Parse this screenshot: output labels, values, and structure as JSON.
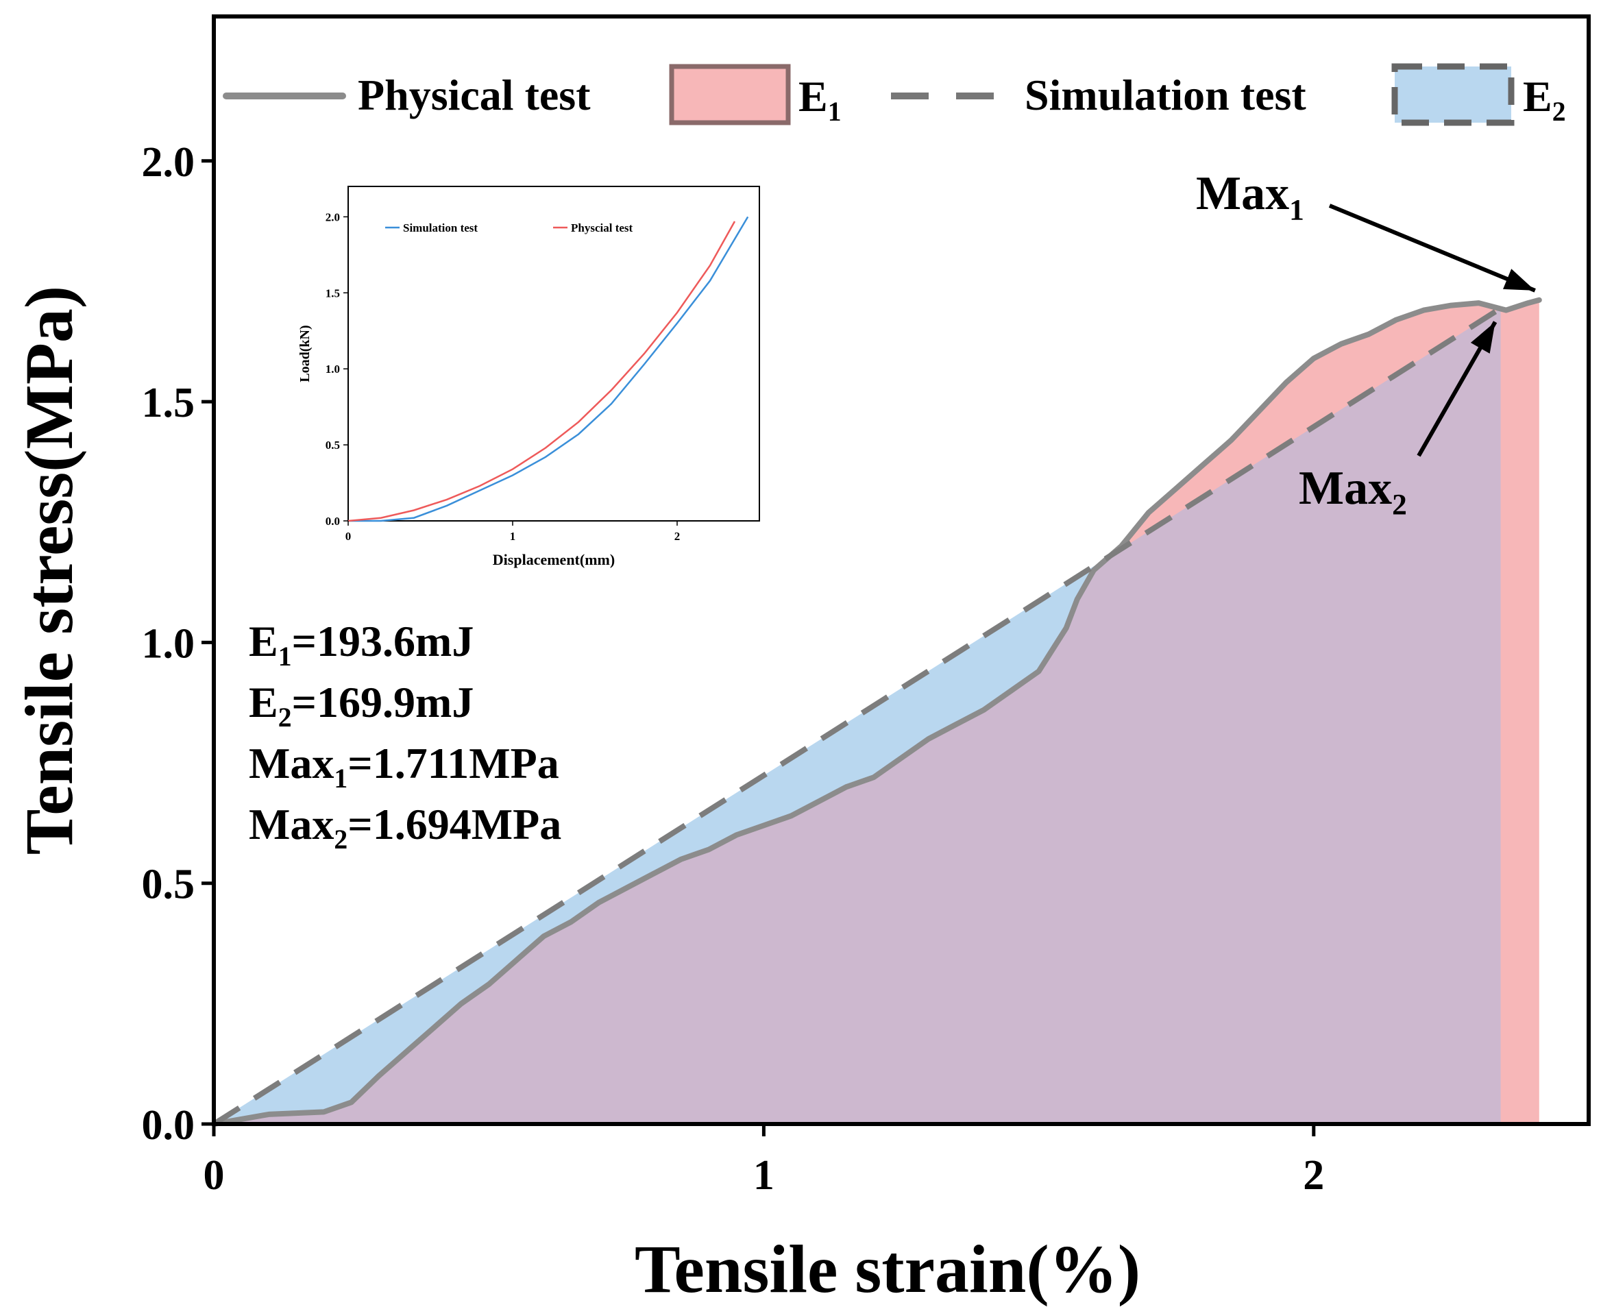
{
  "chart_data": {
    "type": "area",
    "xlabel": "Tensile strain(%)",
    "ylabel": "Tensile stress(MPa)",
    "xlim": [
      0,
      2.5
    ],
    "ylim": [
      0,
      2.3
    ],
    "x_ticks": [
      "0",
      "1",
      "2"
    ],
    "x_tick_values": [
      0,
      1,
      2
    ],
    "y_ticks": [
      "0.0",
      "0.5",
      "1.0",
      "1.5",
      "2.0"
    ],
    "y_tick_values": [
      0,
      0.5,
      1.0,
      1.5,
      2.0
    ],
    "legend": {
      "placement": "top",
      "physical_label": "Physical test",
      "e1_label": "E",
      "e1_sub": "1",
      "simulation_label": "Simulation test",
      "e2_label": "E",
      "e2_sub": "2"
    },
    "series": [
      {
        "name": "Physical test",
        "style": "solid",
        "x": [
          0,
          0.1,
          0.2,
          0.25,
          0.3,
          0.35,
          0.4,
          0.45,
          0.5,
          0.55,
          0.6,
          0.65,
          0.7,
          0.75,
          0.8,
          0.85,
          0.9,
          0.95,
          1.0,
          1.05,
          1.1,
          1.15,
          1.2,
          1.25,
          1.3,
          1.35,
          1.4,
          1.45,
          1.5,
          1.55,
          1.57,
          1.6,
          1.65,
          1.7,
          1.75,
          1.8,
          1.85,
          1.9,
          1.95,
          2.0,
          2.05,
          2.1,
          2.15,
          2.2,
          2.25,
          2.3,
          2.35,
          2.39,
          2.41
        ],
        "y": [
          0.0,
          0.02,
          0.025,
          0.045,
          0.1,
          0.15,
          0.2,
          0.25,
          0.29,
          0.34,
          0.39,
          0.42,
          0.46,
          0.49,
          0.52,
          0.55,
          0.57,
          0.6,
          0.62,
          0.64,
          0.67,
          0.7,
          0.72,
          0.76,
          0.8,
          0.83,
          0.86,
          0.9,
          0.94,
          1.03,
          1.09,
          1.15,
          1.2,
          1.27,
          1.32,
          1.37,
          1.42,
          1.48,
          1.54,
          1.59,
          1.62,
          1.64,
          1.67,
          1.69,
          1.7,
          1.705,
          1.69,
          1.705,
          1.711
        ]
      },
      {
        "name": "Simulation test",
        "style": "dashed",
        "x": [
          0,
          2.34
        ],
        "y": [
          0,
          1.694
        ]
      }
    ],
    "fills": [
      {
        "name": "E1",
        "color": "#f7b7b8",
        "under": "Physical test",
        "x_end": 2.41
      },
      {
        "name": "E2",
        "color": "#b9d7ef",
        "under": "Simulation test",
        "x_end": 2.34
      },
      {
        "name": "overlap",
        "color": "#cdb8cf"
      }
    ],
    "annotations": {
      "max1": {
        "label": "Max",
        "sub": "1",
        "x": 2.41,
        "y": 1.711
      },
      "max2": {
        "label": "Max",
        "sub": "2",
        "x": 2.34,
        "y": 1.694
      }
    },
    "stats": [
      {
        "label": "E",
        "sub": "1",
        "value": "=193.6mJ"
      },
      {
        "label": "E",
        "sub": "2",
        "value": "=169.9mJ"
      },
      {
        "label": "Max",
        "sub": "1",
        "value": "=1.711MPa"
      },
      {
        "label": "Max",
        "sub": "2",
        "value": "=1.694MPa"
      }
    ],
    "inset": {
      "type": "line",
      "xlabel": "Displacement(mm)",
      "ylabel": "Load(kN)",
      "xlim": [
        0,
        2.5
      ],
      "ylim": [
        0,
        2.2
      ],
      "x_ticks": [
        "0",
        "1",
        "2"
      ],
      "x_tick_values": [
        0,
        1,
        2
      ],
      "y_ticks": [
        "0.0",
        "0.5",
        "1.0",
        "1.5",
        "2.0"
      ],
      "y_tick_values": [
        0,
        0.5,
        1.0,
        1.5,
        2.0
      ],
      "series": [
        {
          "name": "Simulation test",
          "color": "#3a8fd9",
          "x": [
            0,
            0.2,
            0.4,
            0.6,
            0.8,
            1.0,
            1.2,
            1.4,
            1.6,
            1.8,
            2.0,
            2.2,
            2.43
          ],
          "y": [
            0,
            0.0,
            0.02,
            0.1,
            0.2,
            0.3,
            0.42,
            0.57,
            0.77,
            1.03,
            1.3,
            1.58,
            2.0
          ]
        },
        {
          "name": "Physcial test",
          "color": "#ee5a5a",
          "x": [
            0,
            0.2,
            0.4,
            0.6,
            0.8,
            1.0,
            1.2,
            1.4,
            1.6,
            1.8,
            2.0,
            2.2,
            2.35
          ],
          "y": [
            0,
            0.02,
            0.07,
            0.14,
            0.23,
            0.34,
            0.48,
            0.65,
            0.86,
            1.1,
            1.37,
            1.68,
            1.97
          ]
        }
      ]
    }
  }
}
